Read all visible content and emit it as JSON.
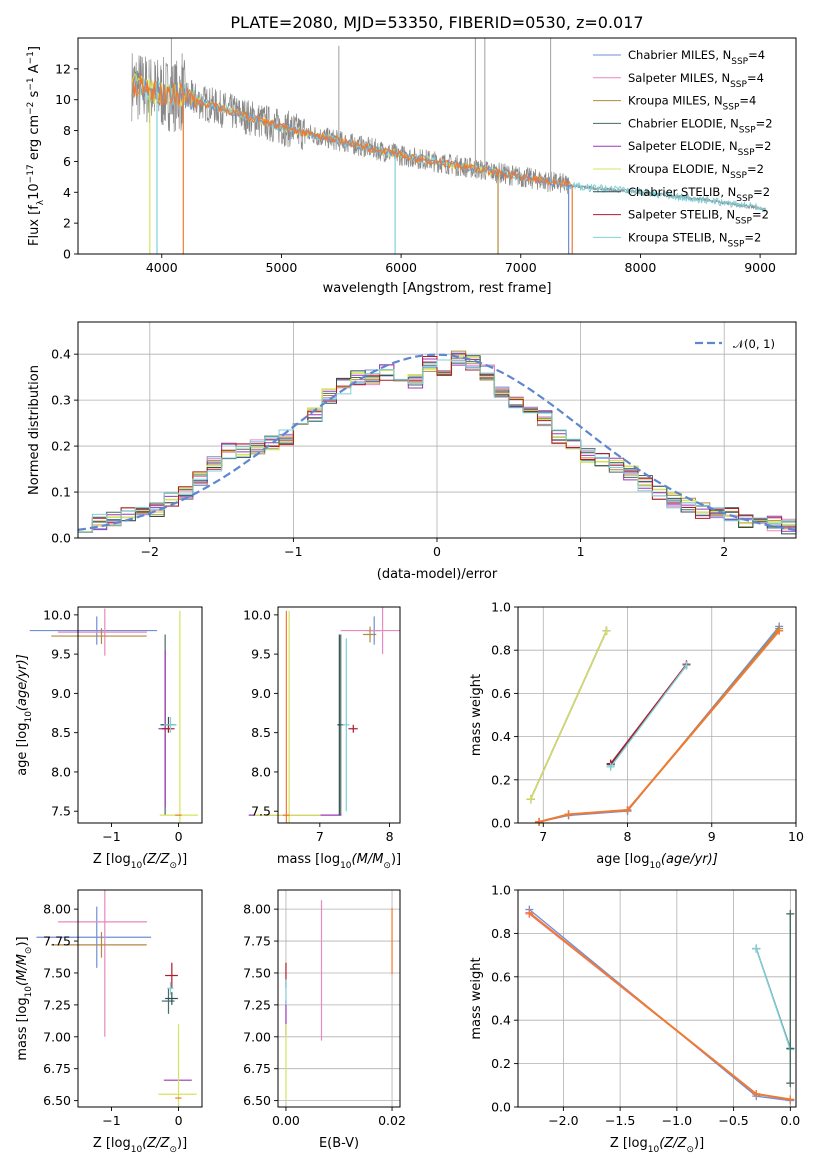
{
  "figure": {
    "title": "PLATE=2080, MJD=53350, FIBERID=0530, z=0.017"
  },
  "colors": {
    "Chabrier MILES": "#6f8fd8",
    "Salpeter MILES": "#e889c0",
    "Kroupa MILES": "#b08a3e",
    "Chabrier ELODIE": "#4a6a64",
    "Salpeter ELODIE": "#9a37b8",
    "Kroupa ELODIE": "#d4e45c",
    "Chabrier STELIB": "#2f4f55",
    "Salpeter STELIB": "#b01a2a",
    "Kroupa STELIB": "#7fd0d8",
    "data": "#888888",
    "orange": "#f07a30",
    "normal": "#5f87d0"
  },
  "chart_data": [
    {
      "id": "spectrum",
      "type": "line",
      "title": "PLATE=2080, MJD=53350, FIBERID=0530, z=0.017",
      "xlabel": "wavelength [Angstrom, rest frame]",
      "ylabel_parts": [
        "Flux [f",
        "λ",
        "10",
        "−17",
        " erg cm",
        "−2",
        " s",
        "−1",
        " A",
        "−1",
        "]"
      ],
      "xlim": [
        3300,
        9300
      ],
      "ylim": [
        0,
        14
      ],
      "xticks": [
        4000,
        5000,
        6000,
        7000,
        8000,
        9000
      ],
      "yticks": [
        0,
        2,
        4,
        6,
        8,
        10,
        12
      ],
      "grid": false,
      "legend_loc": "upper right",
      "legend": [
        {
          "label": "Chabrier MILES",
          "sub": "4"
        },
        {
          "label": "Salpeter MILES",
          "sub": "4"
        },
        {
          "label": "Kroupa MILES",
          "sub": "4"
        },
        {
          "label": "Chabrier ELODIE",
          "sub": "2"
        },
        {
          "label": "Salpeter ELODIE",
          "sub": "2"
        },
        {
          "label": "Kroupa ELODIE",
          "sub": "2"
        },
        {
          "label": "Chabrier STELIB",
          "sub": "2"
        },
        {
          "label": "Salpeter STELIB",
          "sub": "2"
        },
        {
          "label": "Kroupa STELIB",
          "sub": "2"
        }
      ],
      "legend_sub_prefix": "N",
      "legend_sub_label": "SSP",
      "continuum_x": [
        3750,
        3900,
        4000,
        4200,
        4500,
        4800,
        5000,
        5500,
        6000,
        6500,
        7000,
        7500,
        8000,
        8500,
        9050
      ],
      "continuum_y": [
        11.0,
        10.6,
        10.4,
        10.2,
        9.4,
        8.7,
        8.2,
        7.3,
        6.4,
        5.7,
        5.0,
        4.35,
        4.0,
        3.55,
        2.9
      ]
    },
    {
      "id": "residuals",
      "type": "step",
      "xlabel": "(data-model)/error",
      "ylabel": "Normed distribution",
      "xlim": [
        -2.5,
        2.5
      ],
      "ylim": [
        0,
        0.47
      ],
      "xticks": [
        -2,
        -1,
        0,
        1,
        2
      ],
      "yticks": [
        0.0,
        0.1,
        0.2,
        0.3,
        0.4
      ],
      "grid": true,
      "legend_loc": "upper right",
      "reference_label": "𝒩(0, 1)",
      "bin_width": 0.1,
      "bin_start": -2.5,
      "base_hist": [
        0.03,
        0.035,
        0.04,
        0.055,
        0.05,
        0.06,
        0.085,
        0.1,
        0.13,
        0.16,
        0.19,
        0.19,
        0.2,
        0.21,
        0.22,
        0.25,
        0.27,
        0.31,
        0.33,
        0.35,
        0.35,
        0.36,
        0.35,
        0.34,
        0.38,
        0.37,
        0.39,
        0.38,
        0.36,
        0.32,
        0.3,
        0.28,
        0.26,
        0.22,
        0.2,
        0.18,
        0.17,
        0.16,
        0.14,
        0.12,
        0.1,
        0.08,
        0.07,
        0.06,
        0.055,
        0.05,
        0.04,
        0.035,
        0.03,
        0.025
      ]
    },
    {
      "id": "z-age",
      "type": "errorbar",
      "xlabel_parts": [
        "Z [log",
        "10",
        "(Z/Z",
        "⊙",
        ")]"
      ],
      "ylabel_parts": [
        "age  [log",
        "10",
        "(age/yr)]"
      ],
      "xlim": [
        -1.5,
        0.35
      ],
      "ylim": [
        7.35,
        10.1
      ],
      "xticks": [
        -1,
        0
      ],
      "yticks": [
        7.5,
        8.0,
        8.5,
        9.0,
        9.5,
        10.0
      ],
      "grid": false,
      "points": [
        {
          "model": "Chabrier MILES",
          "x": -1.22,
          "y": 9.8,
          "xerr": 1.0,
          "yerr": 0.18
        },
        {
          "model": "Salpeter MILES",
          "x": -1.1,
          "y": 9.78,
          "xerr": 0.7,
          "yerr": 0.3
        },
        {
          "model": "Kroupa MILES",
          "x": -1.15,
          "y": 9.73,
          "xerr": 0.75,
          "yerr": 0.1
        },
        {
          "model": "Chabrier ELODIE",
          "x": -0.2,
          "y": 8.6,
          "xerr": 0.05,
          "yerr": 1.15
        },
        {
          "model": "Salpeter ELODIE",
          "x": -0.2,
          "y": 8.55,
          "xerr": 0.1,
          "yerr": 1.0
        },
        {
          "model": "Kroupa ELODIE",
          "x": 0.02,
          "y": 7.45,
          "xerr": 0.3,
          "yerr": 2.6
        },
        {
          "model": "Chabrier STELIB",
          "x": -0.15,
          "y": 8.6,
          "xerr": 0.12,
          "yerr": 0.1
        },
        {
          "model": "Salpeter STELIB",
          "x": -0.15,
          "y": 8.55,
          "xerr": 0.1,
          "yerr": 0.05
        },
        {
          "model": "Kroupa STELIB",
          "x": -0.12,
          "y": 8.6,
          "xerr": 0.1,
          "yerr": 0.1
        },
        {
          "model": "orange",
          "x": 0.0,
          "y": 7.45,
          "xerr": 0.05,
          "yerr": 0.0
        }
      ]
    },
    {
      "id": "mass-age",
      "type": "errorbar",
      "xlabel_parts": [
        "mass [log",
        "10",
        "(M/M",
        "⊙",
        ")]"
      ],
      "xlim": [
        6.4,
        8.15
      ],
      "ylim": [
        7.35,
        10.1
      ],
      "xticks": [
        7,
        8
      ],
      "yticks": [
        7.5,
        8.0,
        8.5,
        9.0,
        9.5,
        10.0
      ],
      "grid": false,
      "points": [
        {
          "model": "Chabrier MILES",
          "x": 7.78,
          "y": 9.8,
          "xerr": 0.1,
          "yerr": 0.18
        },
        {
          "model": "Salpeter MILES",
          "x": 7.9,
          "y": 9.8,
          "xerr": 0.6,
          "yerr": 0.3
        },
        {
          "model": "Kroupa MILES",
          "x": 7.72,
          "y": 9.75,
          "xerr": 0.1,
          "yerr": 0.1
        },
        {
          "model": "Chabrier ELODIE",
          "x": 7.3,
          "y": 8.6,
          "xerr": 0.05,
          "yerr": 1.15
        },
        {
          "model": "Salpeter ELODIE",
          "x": 6.68,
          "y": 7.45,
          "xerr": 0.7,
          "yerr": 0.0
        },
        {
          "model": "Kroupa ELODIE",
          "x": 6.56,
          "y": 7.45,
          "xerr": 0.5,
          "yerr": 2.6
        },
        {
          "model": "Chabrier STELIB",
          "x": 7.28,
          "y": 8.6,
          "xerr": 0.02,
          "yerr": 1.15
        },
        {
          "model": "Salpeter STELIB",
          "x": 7.48,
          "y": 8.55,
          "xerr": 0.07,
          "yerr": 0.05
        },
        {
          "model": "Kroupa STELIB",
          "x": 7.38,
          "y": 8.6,
          "xerr": 0.05,
          "yerr": 1.1
        },
        {
          "model": "orange",
          "x": 6.52,
          "y": 7.45,
          "xerr": 0.05,
          "yerr": 2.6
        }
      ]
    },
    {
      "id": "age-weight",
      "type": "line",
      "xlabel_parts": [
        "age  [log",
        "10",
        "(age/yr)]"
      ],
      "ylabel": "mass weight",
      "xlim": [
        6.7,
        10.0
      ],
      "ylim": [
        0.0,
        1.0
      ],
      "xticks": [
        7,
        8,
        9,
        10
      ],
      "yticks": [
        0.0,
        0.2,
        0.4,
        0.6,
        0.8,
        1.0
      ],
      "grid": true,
      "series": [
        {
          "model": "Chabrier MILES",
          "x": [
            6.95,
            7.3,
            8.0,
            9.8
          ],
          "y": [
            0.005,
            0.035,
            0.055,
            0.91
          ]
        },
        {
          "model": "Salpeter MILES",
          "x": [
            6.95,
            7.3,
            8.0,
            9.8
          ],
          "y": [
            0.005,
            0.04,
            0.06,
            0.89
          ]
        },
        {
          "model": "Kroupa MILES",
          "x": [
            6.95,
            7.3,
            8.0,
            9.8
          ],
          "y": [
            0.005,
            0.04,
            0.06,
            0.9
          ]
        },
        {
          "model": "orange",
          "x": [
            6.95,
            7.3,
            8.0,
            9.8
          ],
          "y": [
            0.005,
            0.04,
            0.06,
            0.89
          ]
        },
        {
          "model": "Chabrier ELODIE",
          "x": [
            6.85,
            7.75
          ],
          "y": [
            0.11,
            0.89
          ]
        },
        {
          "model": "Salpeter ELODIE",
          "x": [
            6.85,
            7.75
          ],
          "y": [
            0.11,
            0.89
          ]
        },
        {
          "model": "Kroupa ELODIE",
          "x": [
            6.85,
            7.75
          ],
          "y": [
            0.11,
            0.89
          ]
        },
        {
          "model": "Chabrier STELIB",
          "x": [
            7.8,
            8.7
          ],
          "y": [
            0.27,
            0.73
          ]
        },
        {
          "model": "Salpeter STELIB",
          "x": [
            7.8,
            8.7
          ],
          "y": [
            0.275,
            0.735
          ]
        },
        {
          "model": "Kroupa STELIB",
          "x": [
            7.8,
            8.7
          ],
          "y": [
            0.26,
            0.73
          ]
        }
      ]
    },
    {
      "id": "z-mass",
      "type": "errorbar",
      "xlabel_parts": [
        "Z [log",
        "10",
        "(Z/Z",
        "⊙",
        ")]"
      ],
      "ylabel_parts": [
        "mass [log",
        "10",
        "(M/M",
        "⊙",
        ")]"
      ],
      "xlim": [
        -1.5,
        0.35
      ],
      "ylim": [
        6.45,
        8.15
      ],
      "xticks": [
        -1,
        0
      ],
      "yticks": [
        6.5,
        6.75,
        7.0,
        7.25,
        7.5,
        7.75,
        8.0
      ],
      "grid": false,
      "points": [
        {
          "model": "Chabrier MILES",
          "x": -1.22,
          "y": 7.78,
          "xerr": 0.9,
          "yerr": 0.24
        },
        {
          "model": "Salpeter MILES",
          "x": -1.1,
          "y": 7.9,
          "xerr": 0.7,
          "yerr": 0.9
        },
        {
          "model": "Kroupa MILES",
          "x": -1.15,
          "y": 7.72,
          "xerr": 0.75,
          "yerr": 0.1
        },
        {
          "model": "Chabrier ELODIE",
          "x": -0.15,
          "y": 7.28,
          "xerr": 0.1,
          "yerr": 0.1
        },
        {
          "model": "Salpeter ELODIE",
          "x": 0.0,
          "y": 6.66,
          "xerr": 0.22,
          "yerr": 0.0
        },
        {
          "model": "Kroupa ELODIE",
          "x": 0.0,
          "y": 6.55,
          "xerr": 0.3,
          "yerr": 0.55
        },
        {
          "model": "Chabrier STELIB",
          "x": -0.1,
          "y": 7.3,
          "xerr": 0.1,
          "yerr": 0.05
        },
        {
          "model": "Salpeter STELIB",
          "x": -0.1,
          "y": 7.48,
          "xerr": 0.1,
          "yerr": 0.1
        },
        {
          "model": "Kroupa STELIB",
          "x": -0.12,
          "y": 7.38,
          "xerr": 0.05,
          "yerr": 0.05
        },
        {
          "model": "orange",
          "x": 0.0,
          "y": 6.52,
          "xerr": 0.05,
          "yerr": 0.0
        }
      ]
    },
    {
      "id": "ebv-mass",
      "type": "errorbar",
      "xlabel": "E(B-V)",
      "xlim": [
        -0.0015,
        0.0215
      ],
      "ylim": [
        6.45,
        8.15
      ],
      "xticks": [
        0.0,
        0.02
      ],
      "xticklabels": [
        "0.00",
        "0.02"
      ],
      "yticks": [
        6.5,
        6.75,
        7.0,
        7.25,
        7.5,
        7.75,
        8.0
      ],
      "grid": true,
      "points": [
        {
          "model": "Salpeter MILES",
          "x": 0.0067,
          "y": 7.52,
          "xerr": 0.0,
          "yerr": 0.55
        },
        {
          "model": "orange",
          "x": 0.02,
          "y": 7.75,
          "xerr": 0.0,
          "yerr": 0.26
        },
        {
          "model": "Salpeter STELIB",
          "x": 0.0,
          "y": 7.48,
          "xerr": 0.0,
          "yerr": 0.1
        },
        {
          "model": "Salpeter ELODIE",
          "x": 0.0,
          "y": 7.15,
          "xerr": 0.0,
          "yerr": 0.14
        },
        {
          "model": "Kroupa STELIB",
          "x": 0.0,
          "y": 7.35,
          "xerr": 0.0,
          "yerr": 0.1
        },
        {
          "model": "Kroupa ELODIE",
          "x": 0.0,
          "y": 6.8,
          "xerr": 0.0,
          "yerr": 0.3
        }
      ]
    },
    {
      "id": "z-weight",
      "type": "line",
      "xlabel_parts": [
        "Z [log",
        "10",
        "(Z/Z",
        "⊙",
        ")]"
      ],
      "ylabel": "mass weight",
      "xlim": [
        -2.4,
        0.05
      ],
      "ylim": [
        0.0,
        1.0
      ],
      "xticks": [
        -2.0,
        -1.5,
        -1.0,
        -0.5,
        0.0
      ],
      "xticklabels": [
        "−2.0",
        "−1.5",
        "−1.0",
        "−0.5",
        "0.0"
      ],
      "yticks": [
        0.0,
        0.2,
        0.4,
        0.6,
        0.8,
        1.0
      ],
      "grid": true,
      "series": [
        {
          "model": "Chabrier MILES",
          "x": [
            -2.3,
            -0.3,
            0.0
          ],
          "y": [
            0.91,
            0.05,
            0.03
          ]
        },
        {
          "model": "Salpeter MILES",
          "x": [
            -2.3,
            -0.3,
            0.0
          ],
          "y": [
            0.89,
            0.06,
            0.035
          ]
        },
        {
          "model": "orange",
          "x": [
            -2.3,
            -0.3,
            0.0
          ],
          "y": [
            0.895,
            0.06,
            0.035
          ]
        },
        {
          "model": "Chabrier STELIB",
          "x": [
            -0.3,
            0.0
          ],
          "y": [
            0.73,
            0.27
          ]
        },
        {
          "model": "Kroupa STELIB",
          "x": [
            -0.3,
            0.0
          ],
          "y": [
            0.73,
            0.265
          ]
        },
        {
          "model": "Kroupa ELODIE",
          "x": [
            0.0,
            0.0
          ],
          "y": [
            0.11,
            0.89
          ]
        },
        {
          "model": "Chabrier ELODIE",
          "x": [
            0.0,
            0.0
          ],
          "y": [
            0.11,
            0.89
          ]
        }
      ]
    }
  ]
}
